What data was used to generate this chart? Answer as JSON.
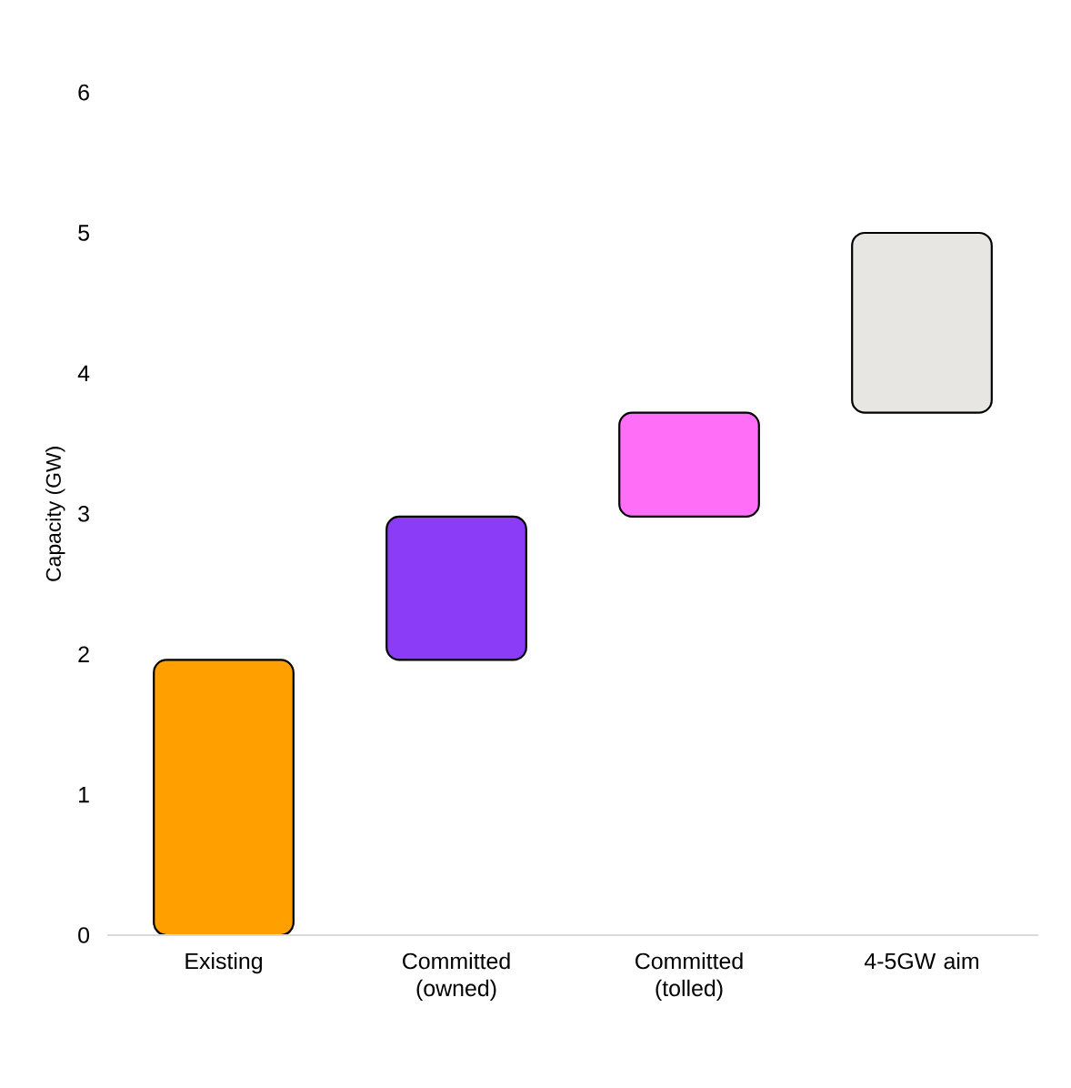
{
  "chart_data": {
    "type": "bar",
    "ylabel": "Capacity (GW)",
    "categories": [
      "Existing",
      "Committed (owned)",
      "Committed (tolled)",
      "4-5GW aim"
    ],
    "values": [
      1.96,
      1.02,
      0.74,
      1.28
    ],
    "base": [
      0,
      1.96,
      2.98,
      3.72
    ],
    "colors": [
      "#ff9f00",
      "#8b3cf7",
      "#ff6ef7",
      "#e8e6e3"
    ],
    "ylim": [
      0,
      6
    ],
    "yticks": [
      0,
      1,
      2,
      3,
      4,
      5,
      6
    ],
    "grid": false
  }
}
